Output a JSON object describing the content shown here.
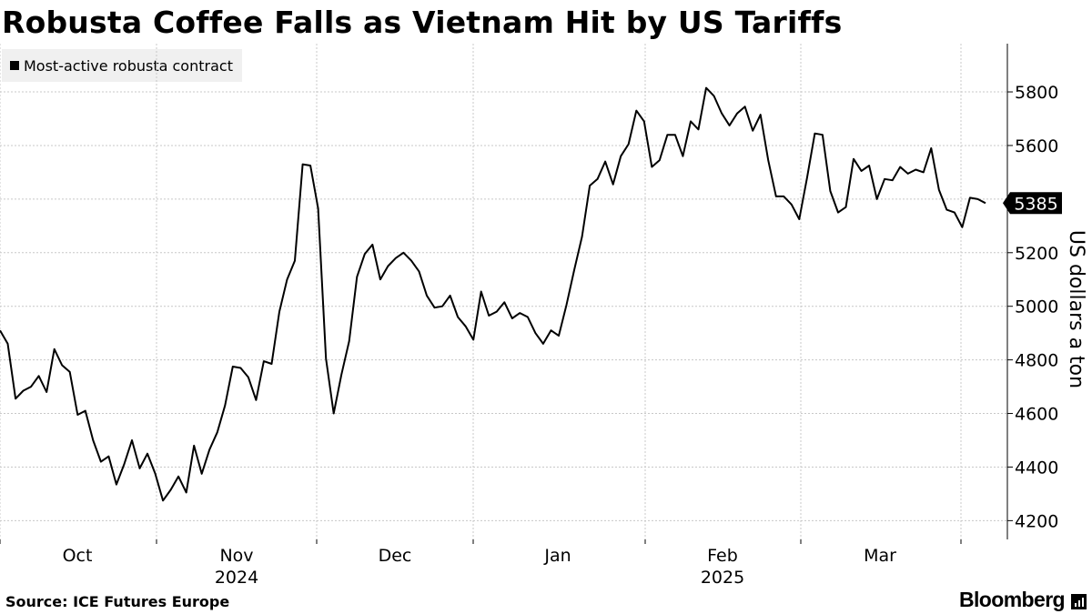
{
  "title": "Robusta Coffee Falls as Vietnam Hit by US Tariffs",
  "legend": {
    "label": "Most-active robusta contract",
    "color": "#000000"
  },
  "footer": {
    "source": "Source: ICE Futures Europe",
    "brand": "Bloomberg"
  },
  "chart_data": {
    "type": "line",
    "title": "Robusta Coffee Falls as Vietnam Hit by US Tariffs",
    "ylabel": "US dollars a ton",
    "ylim": [
      4130,
      5980
    ],
    "yticks": [
      4200,
      4400,
      4600,
      4800,
      5000,
      5200,
      5400,
      5600,
      5800
    ],
    "x_tick_labels": [
      "Oct",
      "Nov",
      "Dec",
      "Jan",
      "Feb",
      "Mar"
    ],
    "year_labels": [
      {
        "label": "2024",
        "month": "Nov"
      },
      {
        "label": "2025",
        "month": "Feb"
      }
    ],
    "last_value_label": "5385",
    "grid": true,
    "legend_position": "top-left",
    "series": [
      {
        "name": "Most-active robusta contract",
        "color": "#000000",
        "values": [
          4910,
          4860,
          4655,
          4685,
          4700,
          4740,
          4680,
          4840,
          4780,
          4755,
          4595,
          4610,
          4500,
          4420,
          4440,
          4335,
          4410,
          4500,
          4395,
          4450,
          4375,
          4275,
          4315,
          4365,
          4305,
          4480,
          4375,
          4465,
          4530,
          4630,
          4775,
          4770,
          4735,
          4650,
          4795,
          4785,
          4980,
          5100,
          5170,
          5530,
          5525,
          5365,
          4805,
          4600,
          4745,
          4870,
          5110,
          5195,
          5230,
          5100,
          5150,
          5180,
          5200,
          5170,
          5130,
          5040,
          4995,
          5000,
          5040,
          4960,
          4925,
          4875,
          5055,
          4965,
          4980,
          5015,
          4955,
          4975,
          4960,
          4900,
          4860,
          4910,
          4890,
          5005,
          5135,
          5260,
          5450,
          5475,
          5540,
          5455,
          5560,
          5605,
          5730,
          5690,
          5520,
          5545,
          5640,
          5640,
          5560,
          5690,
          5660,
          5815,
          5785,
          5720,
          5675,
          5720,
          5745,
          5655,
          5715,
          5545,
          5410,
          5410,
          5380,
          5325,
          5480,
          5645,
          5640,
          5430,
          5350,
          5370,
          5550,
          5505,
          5525,
          5400,
          5475,
          5470,
          5520,
          5495,
          5510,
          5500,
          5590,
          5435,
          5360,
          5350,
          5295,
          5405,
          5400,
          5385
        ]
      }
    ]
  }
}
